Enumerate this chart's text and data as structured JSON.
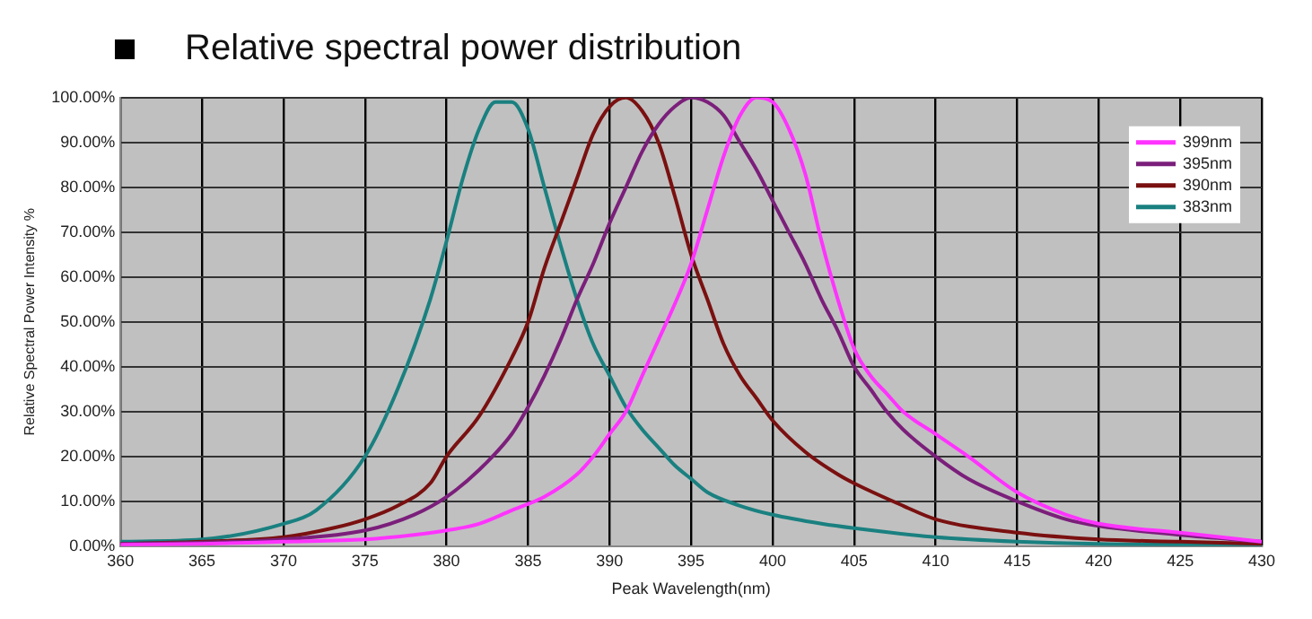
{
  "chart_data": {
    "type": "line",
    "title": "Relative spectral power distribution",
    "xlabel": "Peak Wavelength(nm)",
    "ylabel": "Relative Spectral Power Intensity %",
    "xlim": [
      360,
      430
    ],
    "xticks": [
      360,
      365,
      370,
      375,
      380,
      385,
      390,
      395,
      400,
      405,
      410,
      415,
      420,
      425,
      430
    ],
    "ylim": [
      0,
      100
    ],
    "yticks": [
      {
        "value": 0,
        "label": "0.00%"
      },
      {
        "value": 10,
        "label": "10.00%"
      },
      {
        "value": 20,
        "label": "20.00%"
      },
      {
        "value": 30,
        "label": "30.00%"
      },
      {
        "value": 40,
        "label": "40.00%"
      },
      {
        "value": 50,
        "label": "50.00%"
      },
      {
        "value": 60,
        "label": "60.00%"
      },
      {
        "value": 70,
        "label": "70.00%"
      },
      {
        "value": 80,
        "label": "80.00%"
      },
      {
        "value": 90,
        "label": "90.00%"
      },
      {
        "value": 100,
        "label": "100.00%"
      }
    ],
    "grid": true,
    "legend": "top right",
    "marker": "none",
    "line_style": "solid",
    "series": [
      {
        "name": "399nm",
        "color": "#ff33ff",
        "x": [
          360,
          365,
          370,
          375,
          378,
          380,
          382,
          384,
          386,
          388,
          389,
          390,
          391,
          392,
          393,
          394,
          395,
          396,
          397,
          398,
          399,
          400,
          401,
          402,
          403,
          404,
          405,
          406,
          407,
          408,
          410,
          412,
          415,
          418,
          420,
          425,
          430
        ],
        "values": [
          0.3,
          0.5,
          1,
          1.5,
          2.5,
          3.5,
          5,
          8,
          11,
          16,
          20,
          25,
          30,
          38,
          46,
          54,
          63,
          75,
          87,
          96,
          100,
          99,
          93,
          83,
          68,
          55,
          44,
          38,
          34,
          30,
          25,
          20,
          12,
          7,
          5,
          3,
          1
        ]
      },
      {
        "name": "395nm",
        "color": "#7b1f7b",
        "x": [
          360,
          365,
          370,
          375,
          378,
          380,
          382,
          384,
          385,
          386,
          387,
          388,
          389,
          390,
          391,
          392,
          393,
          394,
          395,
          396,
          397,
          398,
          399,
          400,
          401,
          402,
          403,
          404,
          405,
          406,
          407,
          408,
          410,
          412,
          415,
          418,
          420,
          425,
          430
        ],
        "values": [
          0.5,
          0.8,
          1.5,
          3.5,
          7,
          11,
          17,
          25,
          31,
          38,
          46,
          55,
          63,
          72,
          80,
          88,
          94,
          98,
          100,
          99,
          96,
          90,
          84,
          77,
          70,
          63,
          55,
          48,
          40,
          35,
          30,
          26,
          20,
          15,
          10,
          6,
          4.5,
          2.5,
          1
        ]
      },
      {
        "name": "390nm",
        "color": "#7a1010",
        "x": [
          360,
          365,
          370,
          373,
          375,
          377,
          379,
          380,
          382,
          384,
          385,
          386,
          387,
          388,
          389,
          390,
          391,
          392,
          393,
          394,
          395,
          396,
          397,
          398,
          399,
          400,
          402,
          404,
          405,
          408,
          410,
          415,
          420,
          425,
          430
        ],
        "values": [
          0.5,
          1,
          2,
          4,
          6,
          9,
          14,
          20,
          29,
          42,
          50,
          62,
          72,
          82,
          92,
          98,
          100,
          97,
          90,
          78,
          65,
          55,
          45,
          38,
          33,
          28,
          21,
          16,
          14,
          9,
          6,
          3,
          1.5,
          1,
          0.5
        ]
      },
      {
        "name": "383nm",
        "color": "#1a8080",
        "x": [
          360,
          365,
          370,
          372,
          375,
          377,
          379,
          380,
          381,
          382,
          383,
          384,
          385,
          386,
          387,
          388,
          389,
          390,
          391,
          392,
          393,
          394,
          395,
          396,
          398,
          400,
          403,
          405,
          410,
          415,
          420,
          430
        ],
        "values": [
          1,
          1.5,
          5,
          8,
          20,
          35,
          55,
          68,
          82,
          93,
          99,
          99,
          93,
          80,
          67,
          55,
          45,
          38,
          31,
          26,
          22,
          18,
          15,
          12,
          9,
          7,
          5,
          4,
          2,
          1,
          0.5,
          0.3
        ]
      }
    ]
  }
}
